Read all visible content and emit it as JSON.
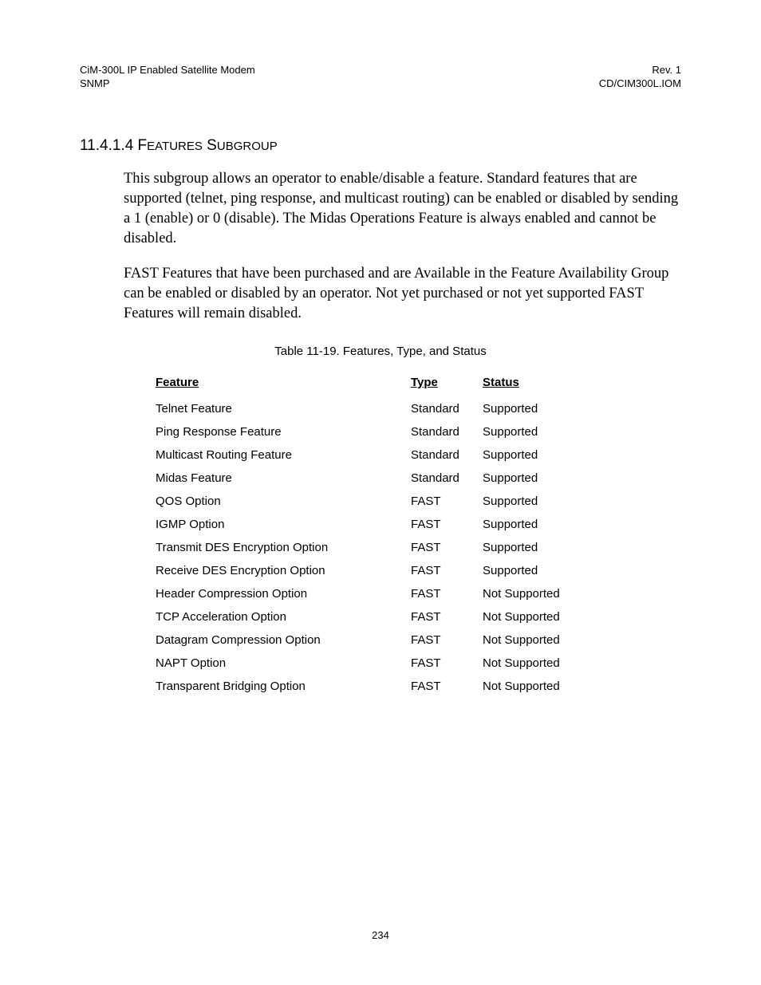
{
  "header": {
    "left_line1": "CiM-300L IP Enabled Satellite Modem",
    "left_line2": "SNMP",
    "right_line1": "Rev. 1",
    "right_line2": "CD/CIM300L.IOM"
  },
  "section": {
    "number": "11.4.1.4",
    "title_word1_cap": "F",
    "title_word1_rest": "EATURES",
    "title_word2_cap": "S",
    "title_word2_rest": "UBGROUP"
  },
  "paragraphs": {
    "p1": "This subgroup allows an operator to enable/disable a feature.  Standard features that are supported (telnet, ping response, and multicast routing) can be enabled or disabled by sending a 1 (enable) or 0 (disable).  The Midas Operations Feature is always enabled and cannot be disabled.",
    "p2": "FAST Features that have been purchased and are Available in the Feature Availability Group can be enabled or disabled by an operator.  Not yet purchased or not yet supported FAST Features will remain disabled."
  },
  "table": {
    "caption": "Table 11-19.  Features, Type, and Status",
    "headers": {
      "feature": "Feature",
      "type": "Type",
      "status": "Status"
    },
    "rows": [
      {
        "feature": "Telnet Feature",
        "type": "Standard",
        "status": "Supported"
      },
      {
        "feature": "Ping Response Feature",
        "type": "Standard",
        "status": "Supported"
      },
      {
        "feature": "Multicast Routing Feature",
        "type": "Standard",
        "status": "Supported"
      },
      {
        "feature": "Midas Feature",
        "type": "Standard",
        "status": "Supported"
      },
      {
        "feature": "QOS Option",
        "type": "FAST",
        "status": "Supported"
      },
      {
        "feature": "IGMP Option",
        "type": "FAST",
        "status": "Supported"
      },
      {
        "feature": "Transmit DES Encryption Option",
        "type": "FAST",
        "status": "Supported"
      },
      {
        "feature": "Receive DES Encryption Option",
        "type": "FAST",
        "status": "Supported"
      },
      {
        "feature": "Header Compression Option",
        "type": "FAST",
        "status": "Not Supported"
      },
      {
        "feature": "TCP Acceleration Option",
        "type": "FAST",
        "status": "Not Supported"
      },
      {
        "feature": "Datagram Compression Option",
        "type": "FAST",
        "status": "Not Supported"
      },
      {
        "feature": "NAPT Option",
        "type": "FAST",
        "status": "Not Supported"
      },
      {
        "feature": "Transparent Bridging Option",
        "type": "FAST",
        "status": "Not Supported"
      }
    ]
  },
  "page_number": "234"
}
